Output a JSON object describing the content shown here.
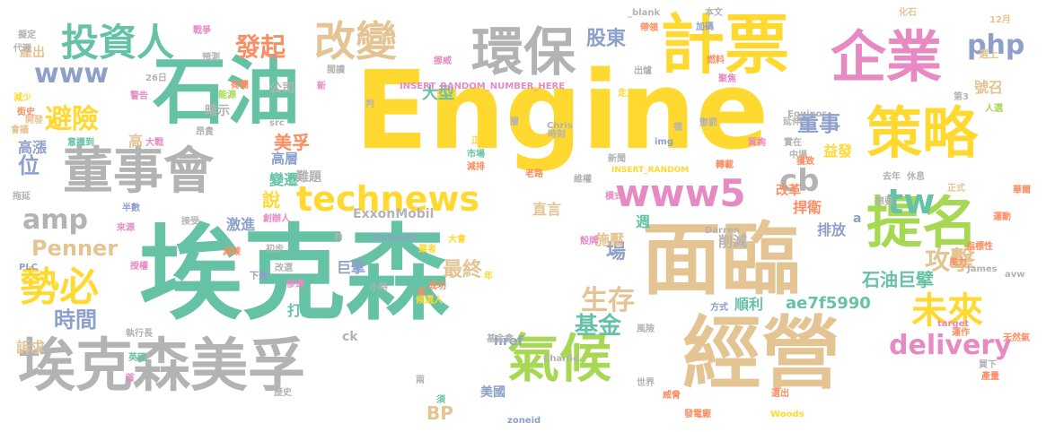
{
  "palette": {
    "teal": "#66c2a5",
    "orange": "#fc8d62",
    "blue": "#8da0cb",
    "pink": "#e78ac3",
    "green": "#a6d854",
    "yellow": "#ffd92f",
    "tan": "#e5c494",
    "gray": "#b3b3b3"
  },
  "words": [
    {
      "text": "Engine",
      "color": "yellow"
    },
    {
      "text": "埃克森",
      "color": "teal"
    },
    {
      "text": "石油",
      "color": "teal"
    },
    {
      "text": "面臨",
      "color": "tan"
    },
    {
      "text": "經營",
      "color": "tan"
    },
    {
      "text": "計票",
      "color": "yellow"
    },
    {
      "text": "企業",
      "color": "pink"
    },
    {
      "text": "策略",
      "color": "yellow"
    },
    {
      "text": "提名",
      "color": "green"
    },
    {
      "text": "埃克森美孚",
      "color": "gray"
    },
    {
      "text": "董事會",
      "color": "gray"
    },
    {
      "text": "環保",
      "color": "gray"
    },
    {
      "text": "投資人",
      "color": "teal"
    },
    {
      "text": "改變",
      "color": "tan"
    },
    {
      "text": "氣候",
      "color": "green"
    },
    {
      "text": "勢必",
      "color": "yellow"
    },
    {
      "text": "www5",
      "color": "pink"
    },
    {
      "text": "technews",
      "color": "yellow"
    },
    {
      "text": "www",
      "color": "blue"
    },
    {
      "text": "發起",
      "color": "orange"
    },
    {
      "text": "避險",
      "color": "yellow"
    },
    {
      "text": "未來",
      "color": "yellow"
    },
    {
      "text": "攻擊",
      "color": "tan"
    },
    {
      "text": "delivery",
      "color": "pink"
    },
    {
      "text": "tw",
      "color": "teal"
    },
    {
      "text": "cb",
      "color": "gray"
    },
    {
      "text": "amp",
      "color": "gray"
    },
    {
      "text": "php",
      "color": "blue"
    },
    {
      "text": "股東",
      "color": "blue"
    },
    {
      "text": "董事",
      "color": "blue"
    },
    {
      "text": "生存",
      "color": "tan"
    },
    {
      "text": "基金",
      "color": "teal"
    },
    {
      "text": "Penner",
      "color": "tan"
    },
    {
      "text": "時間",
      "color": "blue"
    },
    {
      "text": "最終",
      "color": "tan"
    },
    {
      "text": "BP",
      "color": "tan"
    },
    {
      "text": "石油巨擘",
      "color": "teal"
    },
    {
      "text": "位",
      "color": "blue"
    },
    {
      "text": "場",
      "color": "blue"
    },
    {
      "text": "美孚",
      "color": "orange"
    },
    {
      "text": "大型",
      "color": "teal"
    },
    {
      "text": "說",
      "color": "yellow"
    },
    {
      "text": "高層",
      "color": "blue"
    },
    {
      "text": "益發",
      "color": "yellow"
    },
    {
      "text": "捍衛",
      "color": "orange"
    },
    {
      "text": "排放",
      "color": "blue"
    },
    {
      "text": "改革",
      "color": "orange"
    },
    {
      "text": "變遷",
      "color": "teal"
    },
    {
      "text": "難題",
      "color": "gray"
    },
    {
      "text": "ae7f5990",
      "color": "teal"
    },
    {
      "text": "號召",
      "color": "tan"
    },
    {
      "text": "巨擘",
      "color": "blue"
    },
    {
      "text": "訴求",
      "color": "tan"
    },
    {
      "text": "順利",
      "color": "teal"
    },
    {
      "text": "削減",
      "color": "gray"
    },
    {
      "text": "打入",
      "color": "teal"
    },
    {
      "text": "激進",
      "color": "blue"
    },
    {
      "text": "施壓",
      "color": "tan"
    },
    {
      "text": "週",
      "color": "teal"
    },
    {
      "text": "直言",
      "color": "tan"
    },
    {
      "text": "ExxonMobil",
      "color": "gray"
    },
    {
      "text": "美國",
      "color": "blue"
    },
    {
      "text": "href",
      "color": "blue"
    },
    {
      "text": "ck",
      "color": "gray"
    },
    {
      "text": "高漲",
      "color": "blue"
    },
    {
      "text": "高",
      "color": "tan"
    },
    {
      "text": "暗示",
      "color": "gray"
    },
    {
      "text": "公司",
      "color": "gray"
    },
    {
      "text": "產出",
      "color": "tan"
    },
    {
      "text": "n",
      "color": "gray"
    },
    {
      "text": "a",
      "color": "blue"
    },
    {
      "text": "INSERT_RANDOM_NUMBER_HERE",
      "color": "pink"
    },
    {
      "text": "INSERT_RANDOM",
      "color": "yellow"
    },
    {
      "text": "MoneyDJ",
      "color": "blue"
    },
    {
      "text": "Equinor",
      "color": "gray"
    },
    {
      "text": "_blank",
      "color": "gray"
    },
    {
      "text": "12月",
      "color": "tan"
    },
    {
      "text": "選上",
      "color": "tan"
    },
    {
      "text": "代理",
      "color": "gray"
    },
    {
      "text": "帶領",
      "color": "orange"
    },
    {
      "text": "戰爭",
      "color": "pink"
    },
    {
      "text": "本文",
      "color": "gray"
    },
    {
      "text": "化石",
      "color": "tan"
    },
    {
      "text": "擬定",
      "color": "gray"
    },
    {
      "text": "預測",
      "color": "gray"
    },
    {
      "text": "挪威",
      "color": "pink"
    },
    {
      "text": "加碼",
      "color": "blue"
    },
    {
      "text": "閱讀",
      "color": "gray"
    },
    {
      "text": "新聞",
      "color": "gray"
    },
    {
      "text": "出爐",
      "color": "gray"
    },
    {
      "text": "燃料",
      "color": "orange"
    },
    {
      "text": "走上",
      "color": "yellow"
    },
    {
      "text": "荷蘭",
      "color": "orange"
    },
    {
      "text": "26日",
      "color": "gray"
    },
    {
      "text": "聚焦",
      "color": "pink"
    },
    {
      "text": "第3",
      "color": "gray"
    },
    {
      "text": "人選",
      "color": "green"
    },
    {
      "text": "減少",
      "color": "yellow"
    },
    {
      "text": "街史",
      "color": "orange"
    },
    {
      "text": "警告",
      "color": "pink"
    },
    {
      "text": "能源",
      "color": "green"
    },
    {
      "text": "延伸",
      "color": "gray"
    },
    {
      "text": "開發",
      "color": "tan"
    },
    {
      "text": "會議",
      "color": "tan"
    },
    {
      "text": "意識到",
      "color": "teal"
    },
    {
      "text": "大戰",
      "color": "pink"
    },
    {
      "text": "昂貴",
      "color": "gray"
    },
    {
      "text": "時刻",
      "color": "gray"
    },
    {
      "text": "懲罰",
      "color": "gray"
    },
    {
      "text": "質詢",
      "color": "pink"
    },
    {
      "text": "實在",
      "color": "gray"
    },
    {
      "text": "中場",
      "color": "gray"
    },
    {
      "text": "獲致",
      "color": "orange"
    },
    {
      "text": "Chris",
      "color": "gray"
    },
    {
      "text": "img",
      "color": "blue"
    },
    {
      "text": "src",
      "color": "gray"
    },
    {
      "text": "市場",
      "color": "teal"
    },
    {
      "text": "減排",
      "color": "orange"
    },
    {
      "text": "轉載",
      "color": "orange"
    },
    {
      "text": "休息",
      "color": "gray"
    },
    {
      "text": "去年",
      "color": "gray"
    },
    {
      "text": "正式",
      "color": "tan"
    },
    {
      "text": "華爾",
      "color": "orange"
    },
    {
      "text": "拖延",
      "color": "gray"
    },
    {
      "text": "老路",
      "color": "orange"
    },
    {
      "text": "維權",
      "color": "gray"
    },
    {
      "text": "創辦人",
      "color": "pink"
    },
    {
      "text": "模式",
      "color": "pink"
    },
    {
      "text": "想要",
      "color": "gray"
    },
    {
      "text": "運動",
      "color": "orange"
    },
    {
      "text": "半數",
      "color": "blue"
    },
    {
      "text": "來源",
      "color": "pink"
    },
    {
      "text": "接受",
      "color": "gray"
    },
    {
      "text": "減碳",
      "color": "orange"
    },
    {
      "text": "初步",
      "color": "gray"
    },
    {
      "text": "大會",
      "color": "yellow"
    },
    {
      "text": "業者",
      "color": "yellow"
    },
    {
      "text": "殼牌",
      "color": "pink"
    },
    {
      "text": "Darren",
      "color": "gray"
    },
    {
      "text": "指標性",
      "color": "orange"
    },
    {
      "text": "風力",
      "color": "orange"
    },
    {
      "text": "PLC",
      "color": "blue"
    },
    {
      "text": "授權",
      "color": "pink"
    },
    {
      "text": "改選",
      "color": "gray"
    },
    {
      "text": "下週",
      "color": "blue"
    },
    {
      "text": "小時",
      "color": "gray"
    },
    {
      "text": "成功",
      "color": "orange"
    },
    {
      "text": "年",
      "color": "yellow"
    },
    {
      "text": "James",
      "color": "gray"
    },
    {
      "text": "avw",
      "color": "gray"
    },
    {
      "text": "慘遭",
      "color": "pink"
    },
    {
      "text": "前",
      "color": "orange"
    },
    {
      "text": "候選人",
      "color": "yellow"
    },
    {
      "text": "執行長",
      "color": "gray"
    },
    {
      "text": "風險",
      "color": "gray"
    },
    {
      "text": "方式",
      "color": "blue"
    },
    {
      "text": "天然氣",
      "color": "orange"
    },
    {
      "text": "target",
      "color": "pink"
    },
    {
      "text": "運作",
      "color": "orange"
    },
    {
      "text": "基金會",
      "color": "gray"
    },
    {
      "text": "英國",
      "color": "teal"
    },
    {
      "text": "世界",
      "color": "gray"
    },
    {
      "text": "襯托",
      "color": "tan"
    },
    {
      "text": "買下",
      "color": "gray"
    },
    {
      "text": "產量",
      "color": "orange"
    },
    {
      "text": "首",
      "color": "pink"
    },
    {
      "text": "兩",
      "color": "gray"
    },
    {
      "text": "威脅",
      "color": "orange"
    },
    {
      "text": "選出",
      "color": "orange"
    },
    {
      "text": "歷史",
      "color": "gray"
    },
    {
      "text": "須",
      "color": "teal"
    },
    {
      "text": "zoneid",
      "color": "blue"
    },
    {
      "text": "發電廠",
      "color": "orange"
    },
    {
      "text": "Woods",
      "color": "yellow"
    },
    {
      "text": "Charlie",
      "color": "gray"
    },
    {
      "text": "正",
      "color": "yellow"
    },
    {
      "text": "判",
      "color": "gray"
    },
    {
      "text": "層",
      "color": "gray"
    },
    {
      "text": "新",
      "color": "pink"
    },
    {
      "text": "德",
      "color": "gray"
    }
  ]
}
